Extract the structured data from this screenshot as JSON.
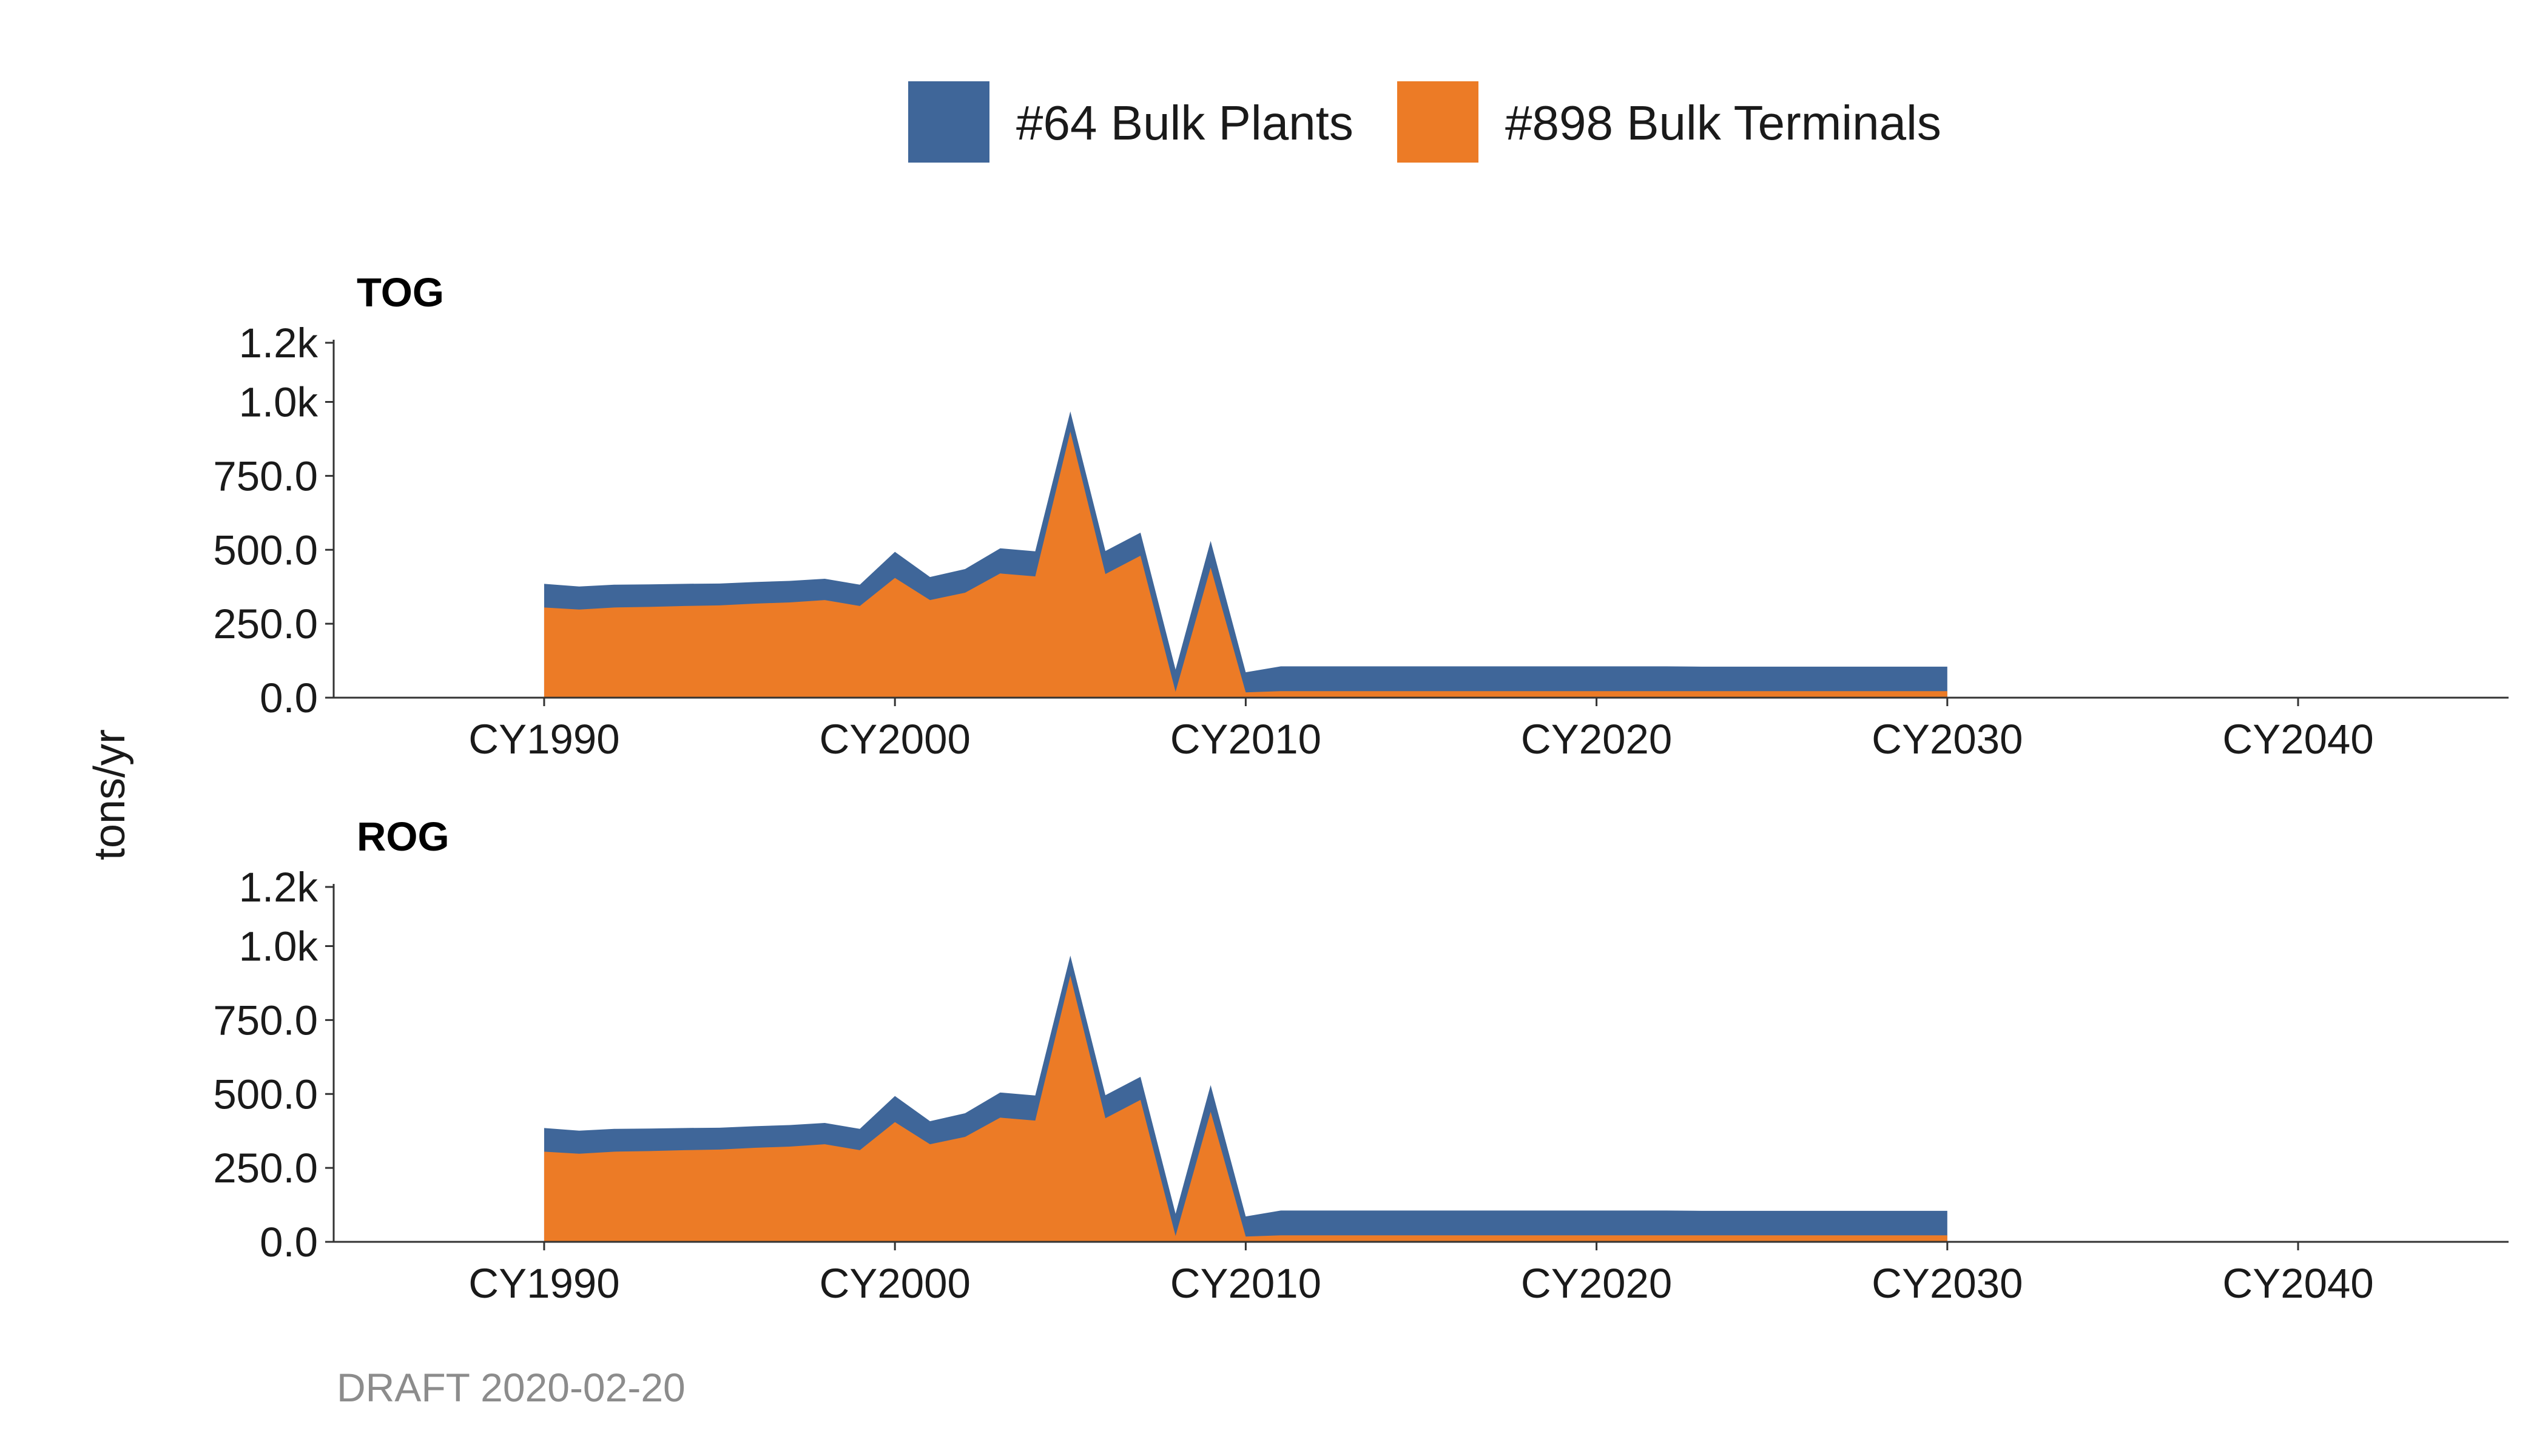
{
  "legend": [
    {
      "label": "#64 Bulk Plants",
      "color": "#3f6699"
    },
    {
      "label": "#898 Bulk Terminals",
      "color": "#ec7b26"
    }
  ],
  "ylabel": "tons/yr",
  "caption": "DRAFT 2020-02-20",
  "chart_data": [
    {
      "type": "area",
      "stacked": true,
      "title": "TOG",
      "x": [
        1990,
        1991,
        1992,
        1993,
        1994,
        1995,
        1996,
        1997,
        1998,
        1999,
        2000,
        2001,
        2002,
        2003,
        2004,
        2005,
        2006,
        2007,
        2008,
        2009,
        2010,
        2011,
        2012,
        2013,
        2014,
        2015,
        2016,
        2017,
        2018,
        2019,
        2020,
        2021,
        2022,
        2023,
        2024,
        2025,
        2026,
        2027,
        2028,
        2029,
        2030
      ],
      "series": [
        {
          "name": "#898 Bulk Terminals",
          "values": [
            305,
            298,
            305,
            307,
            310,
            312,
            318,
            322,
            330,
            310,
            405,
            330,
            355,
            420,
            410,
            900,
            418,
            480,
            20,
            440,
            18,
            22,
            22,
            22,
            22,
            22,
            22,
            22,
            22,
            22,
            22,
            22,
            22,
            22,
            22,
            22,
            22,
            22,
            22,
            22,
            22
          ]
        },
        {
          "name": "#64 Bulk Plants",
          "values": [
            80,
            78,
            77,
            76,
            75,
            74,
            73,
            73,
            72,
            72,
            88,
            78,
            80,
            85,
            85,
            68,
            78,
            78,
            75,
            90,
            68,
            84,
            84,
            84,
            84,
            84,
            84,
            84,
            84,
            84,
            84,
            84,
            84,
            83,
            83,
            83,
            83,
            83,
            83,
            83,
            83
          ]
        }
      ],
      "xlim": [
        1984,
        2046
      ],
      "xticks": [
        "CY1990",
        "CY2000",
        "CY2010",
        "CY2020",
        "CY2030",
        "CY2040"
      ],
      "ylim": [
        0,
        1200
      ],
      "yticks": [
        "0.0",
        "250.0",
        "500.0",
        "750.0",
        "1.0k",
        "1.2k"
      ],
      "grid": false,
      "legend_position": "top"
    },
    {
      "type": "area",
      "stacked": true,
      "title": "ROG",
      "x": [
        1990,
        1991,
        1992,
        1993,
        1994,
        1995,
        1996,
        1997,
        1998,
        1999,
        2000,
        2001,
        2002,
        2003,
        2004,
        2005,
        2006,
        2007,
        2008,
        2009,
        2010,
        2011,
        2012,
        2013,
        2014,
        2015,
        2016,
        2017,
        2018,
        2019,
        2020,
        2021,
        2022,
        2023,
        2024,
        2025,
        2026,
        2027,
        2028,
        2029,
        2030
      ],
      "series": [
        {
          "name": "#898 Bulk Terminals",
          "values": [
            305,
            298,
            305,
            307,
            310,
            312,
            318,
            322,
            330,
            310,
            405,
            330,
            355,
            420,
            410,
            900,
            418,
            480,
            20,
            440,
            18,
            22,
            22,
            22,
            22,
            22,
            22,
            22,
            22,
            22,
            22,
            22,
            22,
            22,
            22,
            22,
            22,
            22,
            22,
            22,
            22
          ]
        },
        {
          "name": "#64 Bulk Plants",
          "values": [
            80,
            78,
            77,
            76,
            75,
            74,
            73,
            73,
            72,
            72,
            88,
            78,
            80,
            85,
            85,
            68,
            78,
            78,
            75,
            90,
            68,
            84,
            84,
            84,
            84,
            84,
            84,
            84,
            84,
            84,
            84,
            84,
            84,
            83,
            83,
            83,
            83,
            83,
            83,
            83,
            83
          ]
        }
      ],
      "xlim": [
        1984,
        2046
      ],
      "xticks": [
        "CY1990",
        "CY2000",
        "CY2010",
        "CY2020",
        "CY2030",
        "CY2040"
      ],
      "ylim": [
        0,
        1200
      ],
      "yticks": [
        "0.0",
        "250.0",
        "500.0",
        "750.0",
        "1.0k",
        "1.2k"
      ],
      "grid": false,
      "legend_position": "top"
    }
  ]
}
